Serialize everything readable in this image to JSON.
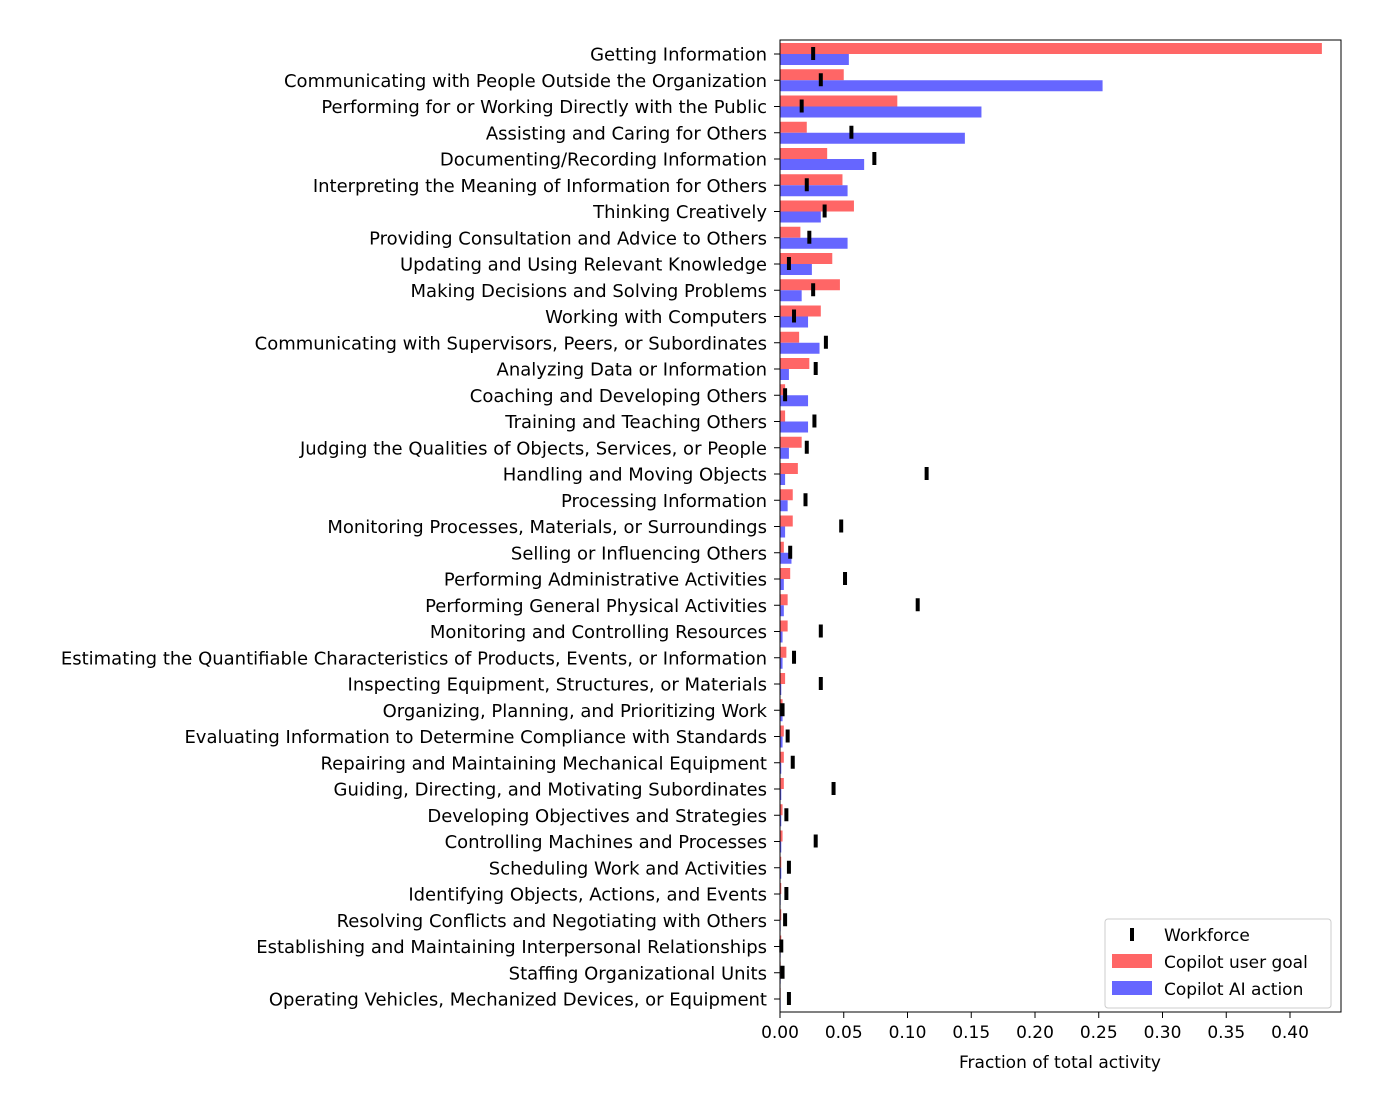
{
  "chart_data": {
    "type": "bar",
    "orientation": "horizontal",
    "categories": [
      "Getting Information",
      "Communicating with People Outside the Organization",
      "Performing for or Working Directly with the Public",
      "Assisting and Caring for Others",
      "Documenting/Recording Information",
      "Interpreting the Meaning of Information for Others",
      "Thinking Creatively",
      "Providing Consultation and Advice to Others",
      "Updating and Using Relevant Knowledge",
      "Making Decisions and Solving Problems",
      "Working with Computers",
      "Communicating with Supervisors, Peers, or Subordinates",
      "Analyzing Data or Information",
      "Coaching and Developing Others",
      "Training and Teaching Others",
      "Judging the Qualities of Objects, Services, or People",
      "Handling and Moving Objects",
      "Processing Information",
      "Monitoring Processes, Materials, or Surroundings",
      "Selling or Influencing Others",
      "Performing Administrative Activities",
      "Performing General Physical Activities",
      "Monitoring and Controlling Resources",
      "Estimating the Quantifiable Characteristics of Products, Events, or Information",
      "Inspecting Equipment, Structures, or Materials",
      "Organizing, Planning, and Prioritizing Work",
      "Evaluating Information to Determine Compliance with Standards",
      "Repairing and Maintaining Mechanical Equipment",
      "Guiding, Directing, and Motivating Subordinates",
      "Developing Objectives and Strategies",
      "Controlling Machines and Processes",
      "Scheduling Work and Activities",
      "Identifying Objects, Actions, and Events",
      "Resolving Conflicts and Negotiating with Others",
      "Establishing and Maintaining Interpersonal Relationships",
      "Staffing Organizational Units",
      "Operating Vehicles, Mechanized Devices, or Equipment"
    ],
    "series": [
      {
        "name": "Copilot user goal",
        "color": "#ff6666",
        "values": [
          0.425,
          0.05,
          0.092,
          0.021,
          0.037,
          0.049,
          0.058,
          0.016,
          0.041,
          0.047,
          0.032,
          0.015,
          0.023,
          0.004,
          0.004,
          0.017,
          0.014,
          0.01,
          0.01,
          0.003,
          0.008,
          0.006,
          0.006,
          0.005,
          0.004,
          0.002,
          0.003,
          0.003,
          0.003,
          0.002,
          0.002,
          0.001,
          0.001,
          0.001,
          0.001,
          0.0005,
          0.0005
        ]
      },
      {
        "name": "Copilot AI action",
        "color": "#6666ff",
        "values": [
          0.054,
          0.253,
          0.158,
          0.145,
          0.066,
          0.053,
          0.032,
          0.053,
          0.025,
          0.017,
          0.022,
          0.031,
          0.007,
          0.022,
          0.022,
          0.007,
          0.004,
          0.006,
          0.004,
          0.009,
          0.003,
          0.003,
          0.002,
          0.002,
          0.001,
          0.002,
          0.002,
          0.001,
          0.001,
          0.001,
          0.001,
          0.001,
          0.0005,
          0.0005,
          0.0005,
          0.0005,
          0.0005
        ]
      },
      {
        "name": "Workforce",
        "color": "#000000",
        "marker": "vertical-tick",
        "values": [
          0.026,
          0.032,
          0.017,
          0.056,
          0.074,
          0.021,
          0.035,
          0.023,
          0.007,
          0.026,
          0.011,
          0.036,
          0.028,
          0.004,
          0.027,
          0.021,
          0.115,
          0.02,
          0.048,
          0.008,
          0.051,
          0.108,
          0.032,
          0.011,
          0.032,
          0.002,
          0.006,
          0.01,
          0.042,
          0.005,
          0.028,
          0.007,
          0.005,
          0.004,
          0.001,
          0.002,
          0.007
        ]
      }
    ],
    "xlabel": "Fraction of total activity",
    "xlim": [
      0,
      0.44
    ],
    "xticks": [
      0.0,
      0.05,
      0.1,
      0.15,
      0.2,
      0.25,
      0.3,
      0.35,
      0.4
    ],
    "xtick_labels": [
      "0.00",
      "0.05",
      "0.10",
      "0.15",
      "0.20",
      "0.25",
      "0.30",
      "0.35",
      "0.40"
    ],
    "grid": false,
    "legend": {
      "placement": "lower-right",
      "entries": [
        "Workforce",
        "Copilot user goal",
        "Copilot AI action"
      ]
    }
  }
}
